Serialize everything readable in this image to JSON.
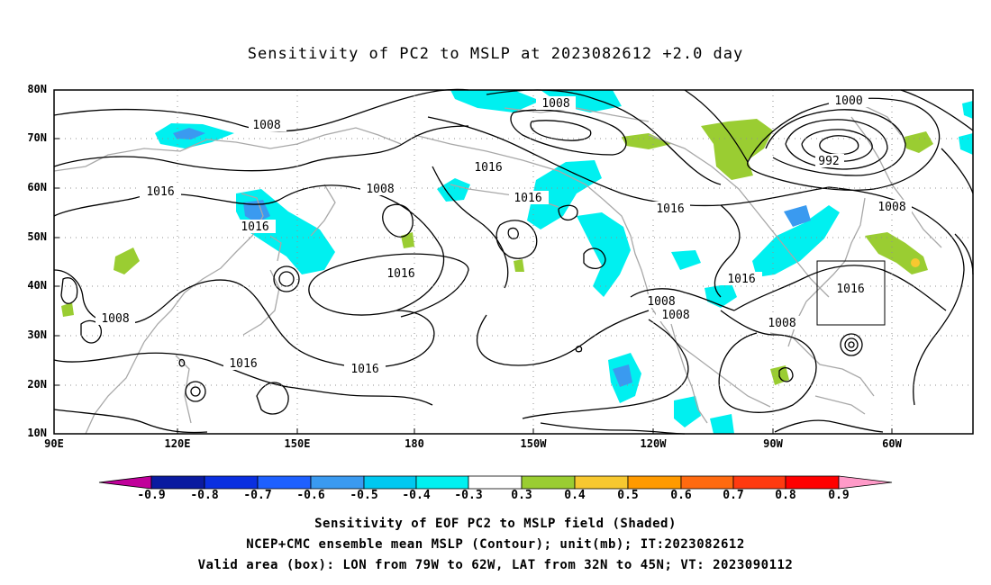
{
  "title": "Sensitivity of PC2 to MSLP at 2023082612 +2.0 day",
  "lat_labels": [
    "80N",
    "70N",
    "60N",
    "50N",
    "40N",
    "30N",
    "20N",
    "10N"
  ],
  "lon_labels": [
    "90E",
    "120E",
    "150E",
    "180",
    "150W",
    "120W",
    "90W",
    "60W"
  ],
  "contour_labels": [
    "1008",
    "1008",
    "1016",
    "1016",
    "1016",
    "1008",
    "1016",
    "1016",
    "1016",
    "1008",
    "1016",
    "1008",
    "1000",
    "992",
    "1016",
    "1008",
    "1016",
    "1008",
    "1008"
  ],
  "box": {
    "label": "1016",
    "lon_range": [
      "79W",
      "62W"
    ],
    "lat_range": [
      "32N",
      "45N"
    ]
  },
  "colorbar": {
    "labels": [
      "-0.9",
      "-0.8",
      "-0.7",
      "-0.6",
      "-0.5",
      "-0.4",
      "-0.3",
      "0.3",
      "0.4",
      "0.5",
      "0.6",
      "0.7",
      "0.8",
      "0.9"
    ],
    "colors": [
      "#c0009a",
      "#0a1aa0",
      "#0a2fe0",
      "#1e60ff",
      "#3a9af0",
      "#00c8f0",
      "#00f0f0",
      "#ffffff",
      "#9acd32",
      "#f7c830",
      "#ff9a00",
      "#ff6a10",
      "#ff3a10",
      "#ff0000",
      "#ff9ac8"
    ]
  },
  "captions": {
    "line1": "Sensitivity of EOF PC2 to MSLP field (Shaded)",
    "line2": "NCEP+CMC ensemble mean MSLP (Contour); unit(mb); IT:2023082612",
    "line3": "Valid area (box): LON from 79W to 62W, LAT from 32N to 45N; VT: 2023090112"
  },
  "colors": {
    "contour": "#000000",
    "coast": "#a8a8a8",
    "grid": "#909090",
    "neg_shade": "#00f0f0",
    "neg_strong": "#3a9af0",
    "pos_shade": "#9acd32"
  }
}
